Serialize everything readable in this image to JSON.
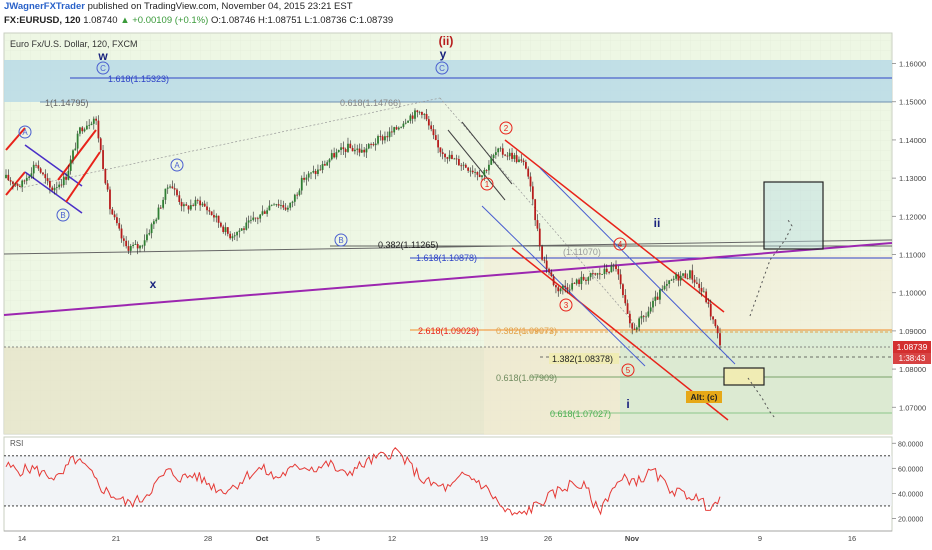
{
  "header": {
    "author": "JWagnerFXTrader",
    "published_text": "published on TradingView.com, November 04, 2015 23:21 EST",
    "symbol_line": {
      "symbol": "FX:EURUSD, 120",
      "last": "1.08740",
      "change": "▲ +0.00109 (+0.1%)",
      "open": "O:1.08746",
      "high": "H:1.08751",
      "low": "L:1.08736",
      "close": "C:1.08739"
    }
  },
  "colors": {
    "candle_up": "#2e7d32",
    "candle_down": "#b71c1c",
    "channel_red": "#e8231a",
    "channel_blue": "#4a5fd0",
    "trendline_purple": "#9c27b0",
    "rsi_line": "#e53935",
    "price_tag": "#d32f2f"
  },
  "chart_data": [
    {
      "type": "candlestick",
      "title": "Euro Fx/U.S. Dollar, 120, FXCM",
      "x_tick_labels": [
        "14",
        "21",
        "28",
        "Oct",
        "5",
        "12",
        "19",
        "26",
        "Nov",
        "9",
        "16"
      ],
      "y_tick_labels": [
        "1.07000",
        "1.08000",
        "1.09000",
        "1.10000",
        "1.11000",
        "1.12000",
        "1.13000",
        "1.14000",
        "1.15000",
        "1.16000"
      ],
      "ylim": [
        1.063,
        1.168
      ],
      "price_tag": "1.08739",
      "countdown_tag": "1:38:43",
      "price_path": [
        [
          "14",
          1.13
        ],
        [
          "15",
          1.128
        ],
        [
          "16",
          1.134
        ],
        [
          "17",
          1.127
        ],
        [
          "18",
          1.13
        ],
        [
          "19",
          1.143
        ],
        [
          "20",
          1.146
        ],
        [
          "21",
          1.122
        ],
        [
          "22",
          1.112
        ],
        [
          "23",
          1.112
        ],
        [
          "24",
          1.119
        ],
        [
          "25",
          1.129
        ],
        [
          "26",
          1.122
        ],
        [
          "28",
          1.124
        ],
        [
          "29",
          1.12
        ],
        [
          "30",
          1.115
        ],
        [
          "Oct",
          1.117
        ],
        [
          "2",
          1.12
        ],
        [
          "3",
          1.124
        ],
        [
          "5",
          1.122
        ],
        [
          "6",
          1.13
        ],
        [
          "8",
          1.132
        ],
        [
          "9",
          1.136
        ],
        [
          "10",
          1.138
        ],
        [
          "11",
          1.137
        ],
        [
          "12",
          1.14
        ],
        [
          "13",
          1.142
        ],
        [
          "14",
          1.146
        ],
        [
          "15",
          1.1477
        ],
        [
          "16",
          1.138
        ],
        [
          "17",
          1.135
        ],
        [
          "18",
          1.133
        ],
        [
          "19",
          1.131
        ],
        [
          "20",
          1.137
        ],
        [
          "21",
          1.136
        ],
        [
          "22",
          1.133
        ],
        [
          "23",
          1.11
        ],
        [
          "24",
          1.101
        ],
        [
          "25",
          1.102
        ],
        [
          "26",
          1.104
        ],
        [
          "27",
          1.105
        ],
        [
          "28",
          1.107
        ],
        [
          "29",
          1.09
        ],
        [
          "30",
          1.094
        ],
        [
          "31",
          1.1
        ],
        [
          "Nov",
          1.104
        ],
        [
          "2",
          1.105
        ],
        [
          "3",
          1.099
        ],
        [
          "4",
          1.087
        ]
      ],
      "annotations": {
        "wave_labels": [
          "w",
          "(ii)",
          "y",
          "x",
          "ii",
          "i"
        ],
        "circled_labels": [
          "A",
          "B",
          "C",
          "A",
          "B",
          "C",
          "1",
          "2",
          "3",
          "4",
          "5"
        ],
        "fib_labels": [
          "1.618(1.15323)",
          "1(1.14795)",
          "0.618(1.14766)",
          "0.382(1.11265)",
          "1.618(1.10878)",
          "2.618(1.09029)",
          "0.382(1.09073)",
          "1.382(1.08378)",
          "0.618(1.07909)",
          "0.618(1.07027)",
          "(1.11070)"
        ],
        "alt_label": "Alt: (c)"
      }
    },
    {
      "type": "line",
      "title": "RSI",
      "ylim": [
        10,
        85
      ],
      "y_tick_labels": [
        "20.0000",
        "40.0000",
        "60.0000",
        "80.0000"
      ],
      "reference_lines": [
        70,
        30
      ],
      "values": [
        62,
        58,
        60,
        55,
        52,
        68,
        60,
        45,
        38,
        32,
        35,
        46,
        58,
        52,
        55,
        48,
        42,
        46,
        55,
        60,
        52,
        58,
        62,
        60,
        64,
        55,
        60,
        66,
        70,
        74,
        62,
        50,
        46,
        44,
        55,
        50,
        40,
        26,
        22,
        28,
        35,
        42,
        48,
        45,
        25,
        44,
        52,
        50,
        58,
        46,
        40,
        38,
        30,
        33
      ]
    }
  ]
}
